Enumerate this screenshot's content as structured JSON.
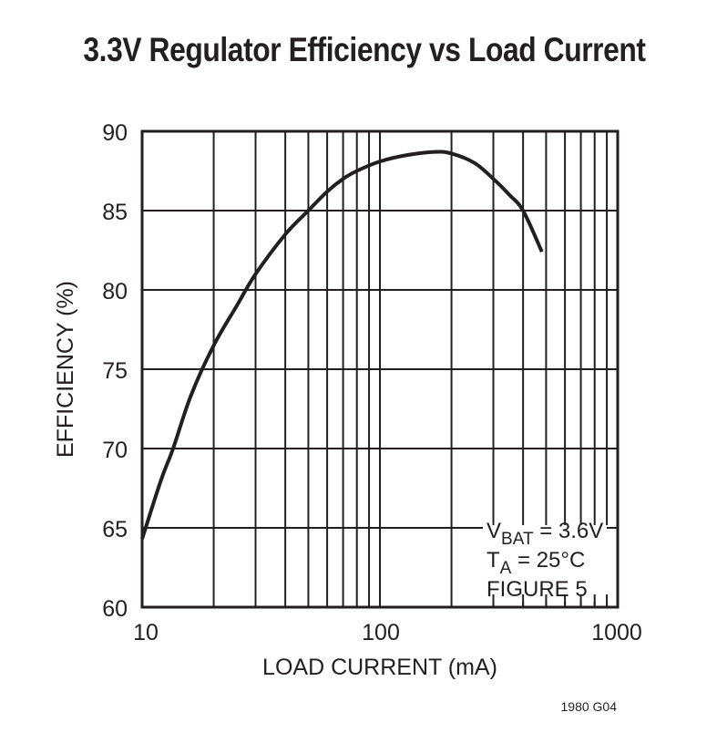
{
  "chart_data": {
    "type": "line",
    "title": "3.3V Regulator Efficiency vs Load Current",
    "xlabel": "LOAD CURRENT (mA)",
    "ylabel": "EFFICIENCY (%)",
    "xscale": "log",
    "xlim": [
      10,
      1000
    ],
    "ylim": [
      60,
      90
    ],
    "xticks": [
      "10",
      "100",
      "1000"
    ],
    "yticks": [
      "60",
      "65",
      "70",
      "75",
      "80",
      "85",
      "90"
    ],
    "grid": true,
    "legend": null,
    "annotations": [
      "VBAT = 3.6V",
      "TA = 25°C",
      "FIGURE 5"
    ],
    "series": [
      {
        "name": "Efficiency",
        "x": [
          10,
          12,
          13.5,
          16,
          20,
          25,
          30,
          40,
          50,
          60,
          70,
          80,
          100,
          130,
          170,
          200,
          250,
          300,
          350,
          400,
          480
        ],
        "y": [
          64.3,
          68.0,
          70.0,
          73.3,
          76.5,
          79.0,
          81.0,
          83.5,
          85.0,
          86.2,
          87.0,
          87.5,
          88.1,
          88.5,
          88.7,
          88.6,
          88.0,
          87.0,
          86.0,
          85.0,
          82.4
        ]
      }
    ]
  },
  "header": {
    "title": "3.3V Regulator Efficiency vs Load Current"
  },
  "axes": {
    "x_label": "LOAD CURRENT (mA)",
    "y_label": "EFFICIENCY (%)",
    "x_ticks": [
      "10",
      "100",
      "1000"
    ],
    "y_ticks": [
      "90",
      "85",
      "80",
      "75",
      "70",
      "65",
      "60"
    ]
  },
  "annotation": {
    "vbat_main": "V",
    "vbat_sub": "BAT",
    "vbat_value": " = 3.6V",
    "ta_main": "T",
    "ta_sub": "A",
    "ta_value": " = 25°C",
    "figure": "FIGURE 5"
  },
  "footer": {
    "code": "1980 G04"
  }
}
